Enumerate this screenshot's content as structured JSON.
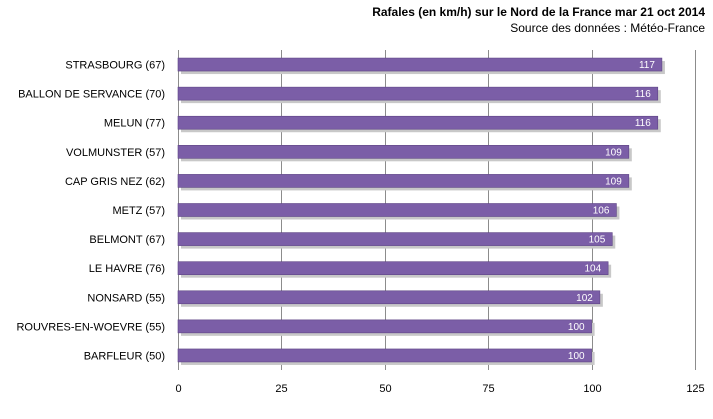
{
  "title": "Rafales  (en km/h) sur le Nord de la France mar 21 oct 2014",
  "subtitle": "Source des données : Météo-France",
  "chart_data": {
    "type": "bar",
    "orientation": "horizontal",
    "categories": [
      "STRASBOURG (67)",
      "BALLON DE SERVANCE (70)",
      "MELUN (77)",
      "VOLMUNSTER (57)",
      "CAP GRIS NEZ (62)",
      "METZ (57)",
      "BELMONT (67)",
      "LE HAVRE (76)",
      "NONSARD (55)",
      "ROUVRES-EN-WOEVRE (55)",
      "BARFLEUR (50)"
    ],
    "values": [
      117,
      116,
      116,
      109,
      109,
      106,
      105,
      104,
      102,
      100,
      100
    ],
    "xlim": [
      0,
      125
    ],
    "xticks": [
      0,
      25,
      50,
      75,
      100,
      125
    ],
    "grid": "vertical",
    "data_labels": true,
    "colors": {
      "bar": "#7B5EA7",
      "bar_edge": "#5E4585",
      "shadow": "#c8c8c8",
      "grid": "#8c8c8c"
    }
  }
}
